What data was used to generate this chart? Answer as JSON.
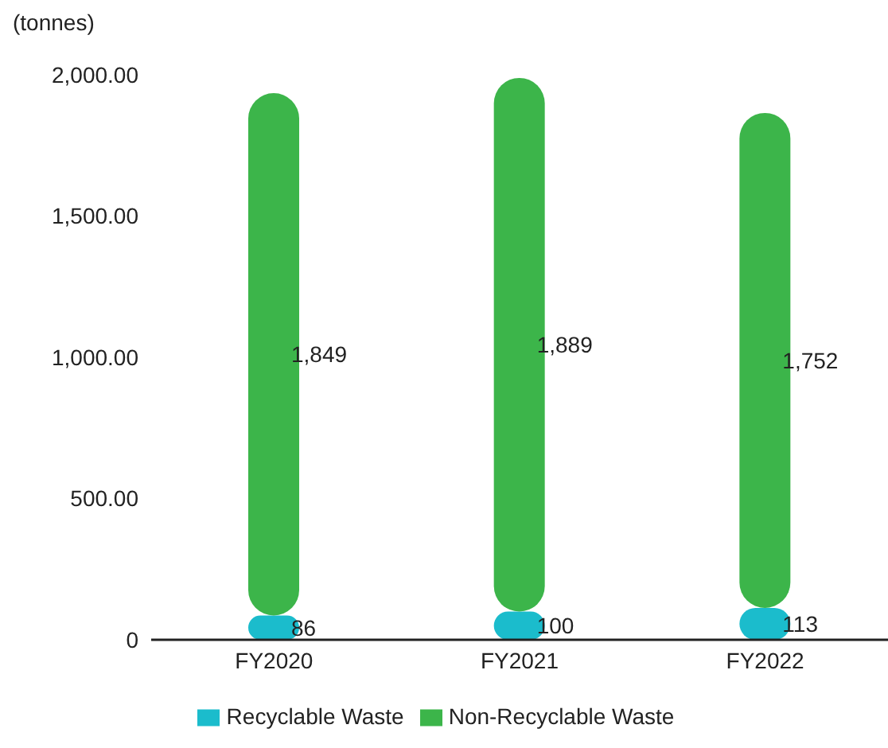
{
  "chart_data": {
    "type": "bar",
    "ylabel": "(tonnes)",
    "categories": [
      "FY2020",
      "FY2021",
      "FY2022"
    ],
    "stacked": true,
    "series": [
      {
        "name": "Recyclable Waste",
        "color": "#1bbccc",
        "values": [
          86,
          100,
          113
        ],
        "value_labels": [
          "86",
          "100",
          "113"
        ]
      },
      {
        "name": "Non-Recyclable Waste",
        "color": "#3cb54a",
        "values": [
          1849,
          1889,
          1752
        ],
        "value_labels": [
          "1,849",
          "1,889",
          "1,752"
        ]
      }
    ],
    "ylim": [
      0,
      2000
    ],
    "yticks": [
      0,
      {
        "value": 500,
        "label": "500.00"
      },
      {
        "value": 1000,
        "label": "1,000.00"
      },
      {
        "value": 1500,
        "label": "1,500.00"
      },
      {
        "value": 2000,
        "label": "2,000.00"
      }
    ],
    "grid": false,
    "legend": "bottom"
  }
}
